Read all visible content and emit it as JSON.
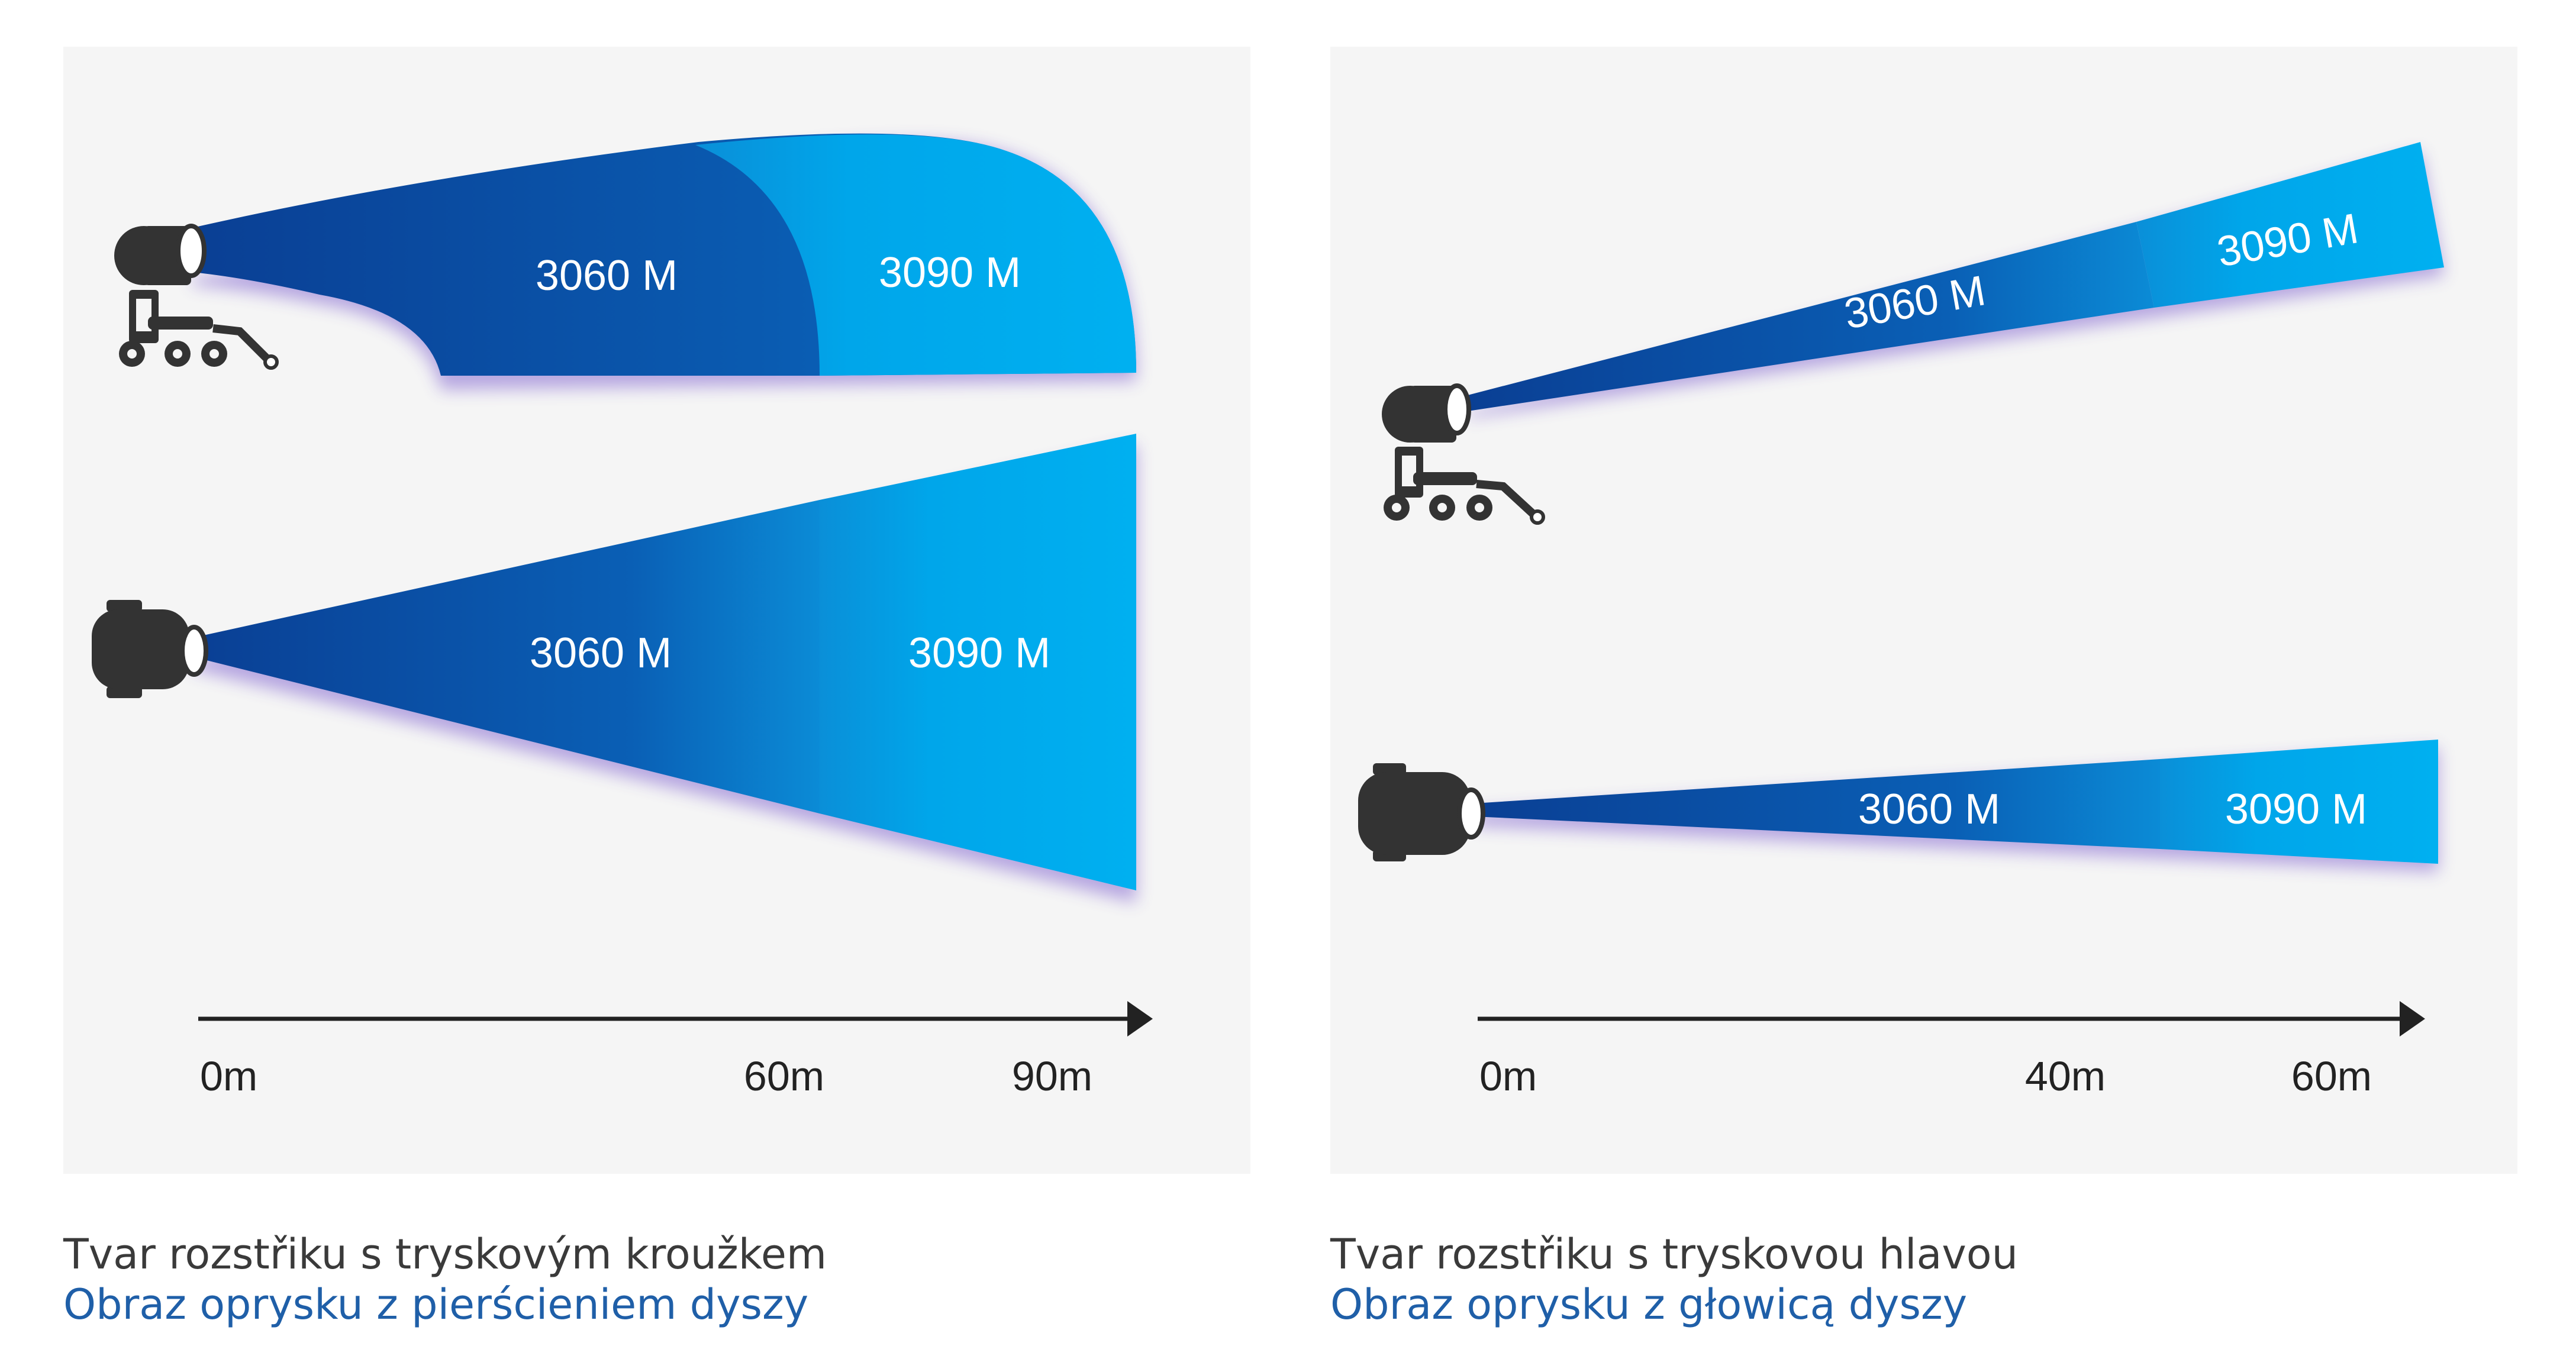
{
  "colors": {
    "panel_bg": "#f5f5f5",
    "spray_dark": "#0a3f94",
    "spray_mid": "#0b78c8",
    "spray_light": "#00adee",
    "shadow": "#6b46c8",
    "machine": "#333333",
    "axis": "#222222",
    "caption_cz": "#3a3a3a",
    "caption_pl": "#1f5fa8"
  },
  "left": {
    "top_spray": {
      "zone1_label": "3060 M",
      "zone2_label": "3090 M"
    },
    "bottom_spray": {
      "zone1_label": "3060 M",
      "zone2_label": "3090 M"
    },
    "axis": {
      "ticks": [
        "0m",
        "60m",
        "90m"
      ]
    },
    "caption_cz": "Tvar rozstřiku s tryskovým kroužkem",
    "caption_pl": "Obraz oprysku z pierścieniem dyszy"
  },
  "right": {
    "top_spray": {
      "zone1_label": "3060 M",
      "zone2_label": "3090 M"
    },
    "bottom_spray": {
      "zone1_label": "3060 M",
      "zone2_label": "3090 M"
    },
    "axis": {
      "ticks": [
        "0m",
        "40m",
        "60m"
      ]
    },
    "caption_cz": "Tvar rozstřiku s tryskovou hlavou",
    "caption_pl": "Obraz oprysku z głowicą dyszy"
  }
}
